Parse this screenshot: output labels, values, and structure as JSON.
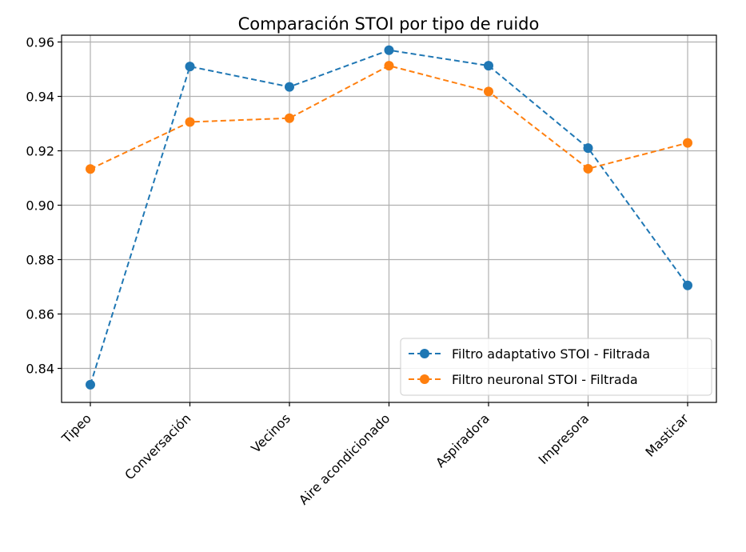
{
  "chart_data": {
    "type": "line",
    "title": "Comparación STOI por tipo de ruido",
    "xlabel": "",
    "ylabel": "",
    "categories": [
      "Tipeo",
      "Conversación",
      "Vecinos",
      "Aire acondicionado",
      "Aspiradora",
      "Impresora",
      "Masticar"
    ],
    "ylim": [
      0.8275,
      0.9625
    ],
    "yticks": [
      "0.84",
      "0.86",
      "0.88",
      "0.90",
      "0.92",
      "0.94",
      "0.96"
    ],
    "grid": true,
    "legend_position": "lower right",
    "series": [
      {
        "name": "Filtro adaptativo STOI - Filtrada",
        "values": [
          0.834,
          0.951,
          0.9435,
          0.957,
          0.9513,
          0.921,
          0.8705
        ],
        "color": "#1f77b4",
        "linestyle": "dashed",
        "marker": "circle"
      },
      {
        "name": "Filtro neuronal STOI - Filtrada",
        "values": [
          0.9133,
          0.9306,
          0.932,
          0.9513,
          0.9418,
          0.9134,
          0.9229
        ],
        "color": "#ff7f0e",
        "linestyle": "dashed",
        "marker": "circle"
      }
    ]
  }
}
